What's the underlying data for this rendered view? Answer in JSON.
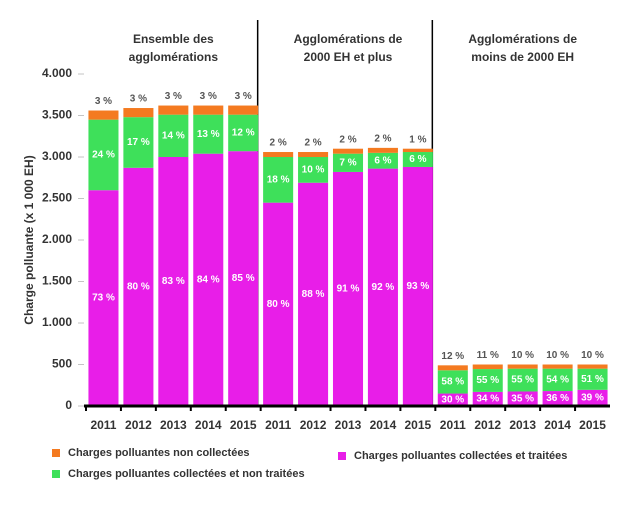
{
  "chart_data": {
    "type": "stacked-bar",
    "y_label": "Charge polluante (x 1 000 EH)",
    "group_labels": [
      [
        "Ensemble des",
        "agglomérations"
      ],
      [
        "Agglomérations de",
        "2000 EH et plus"
      ],
      [
        "Agglomérations de",
        "moins de 2000 EH"
      ]
    ],
    "group_size": 5,
    "categories": [
      "2011",
      "2012",
      "2013",
      "2014",
      "2015",
      "2011",
      "2012",
      "2013",
      "2014",
      "2015",
      "2011",
      "2012",
      "2013",
      "2014",
      "2015"
    ],
    "series": [
      {
        "name": "Charges polluantes collectées et traitées",
        "color": "#e81ee8",
        "values": [
          2600,
          2870,
          3000,
          3040,
          3070,
          2450,
          2690,
          2820,
          2860,
          2880,
          150,
          170,
          175,
          180,
          195
        ],
        "value_labels": [
          "73 %",
          "80 %",
          "83 %",
          "84 %",
          "85 %",
          "80 %",
          "88 %",
          "91 %",
          "92 %",
          "93 %",
          "30 %",
          "34 %",
          "35 %",
          "36 %",
          "39 %"
        ]
      },
      {
        "name": "Charges polluantes collectées et non traitées",
        "color": "#3ee05a",
        "values": [
          850,
          610,
          510,
          470,
          440,
          550,
          310,
          220,
          190,
          180,
          280,
          275,
          275,
          270,
          255
        ],
        "value_labels": [
          "24 %",
          "17 %",
          "14 %",
          "13 %",
          "12 %",
          "18 %",
          "10 %",
          "7 %",
          "6 %",
          "6 %",
          "58 %",
          "55 %",
          "55 %",
          "54 %",
          "51 %"
        ]
      },
      {
        "name": "Charges polluantes non collectées",
        "color": "#f47a20",
        "values": [
          110,
          110,
          110,
          110,
          110,
          60,
          60,
          60,
          60,
          40,
          60,
          55,
          50,
          50,
          50
        ],
        "value_labels": [
          "3 %",
          "3 %",
          "3 %",
          "3 %",
          "3 %",
          "2 %",
          "2 %",
          "2 %",
          "2 %",
          "1 %",
          "12 %",
          "11 %",
          "10 %",
          "10 %",
          "10 %"
        ]
      }
    ],
    "ylim": [
      0,
      4000
    ],
    "yticks": [
      0,
      500,
      {
        "value": 1000,
        "label": "1.000"
      },
      {
        "value": 1500,
        "label": "1.500"
      },
      {
        "value": 2000,
        "label": "2.000"
      },
      {
        "value": 2500,
        "label": "2.500"
      },
      {
        "value": 3000,
        "label": "3.000"
      },
      {
        "value": 3500,
        "label": "3.500"
      },
      {
        "value": 4000,
        "label": "4.000"
      }
    ],
    "legend_order": [
      2,
      1,
      0
    ]
  }
}
